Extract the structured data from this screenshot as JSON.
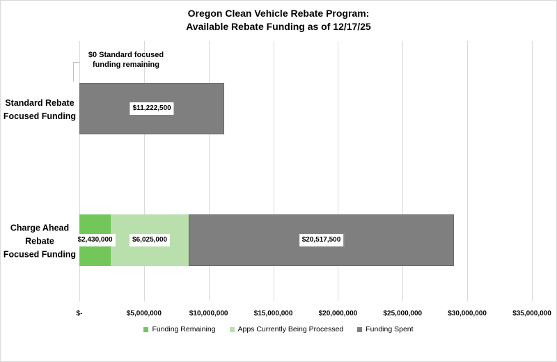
{
  "title": {
    "line1": "Oregon Clean Vehicle Rebate Program:",
    "line2": "Available Rebate Funding as of 12/17/25"
  },
  "chart_data": {
    "type": "bar",
    "orientation": "horizontal",
    "stacked": true,
    "title": "Oregon Clean Vehicle Rebate Program: Available Rebate Funding as of 12/17/25",
    "categories": [
      "Standard Rebate Focused Funding",
      "Charge Ahead Rebate Focused Funding"
    ],
    "category_display_lines": [
      [
        "Standard Rebate",
        "Focused Funding"
      ],
      [
        "Charge Ahead",
        "Rebate",
        "Focused Funding"
      ]
    ],
    "series": [
      {
        "name": "Funding Remaining",
        "color": "#72C65A",
        "values": [
          0,
          2430000
        ],
        "data_labels": [
          "",
          "$2,430,000"
        ],
        "label_border": false
      },
      {
        "name": "Apps Currently Being Processed",
        "color": "#B9DFAC",
        "values": [
          0,
          6025000
        ],
        "data_labels": [
          "",
          "$6,025,000"
        ],
        "label_border": false
      },
      {
        "name": "Funding Spent",
        "color": "#7F7F7F",
        "values": [
          11222500,
          20517500
        ],
        "data_labels": [
          "$11,222,500",
          "$20,517,500"
        ],
        "label_border": true
      }
    ],
    "x_axis": {
      "min": 0,
      "max": 35000000,
      "tick_interval": 5000000,
      "tick_labels": [
        "$-",
        "$5,000,000",
        "$10,000,000",
        "$15,000,000",
        "$20,000,000",
        "$25,000,000",
        "$30,000,000",
        "$35,000,000"
      ]
    },
    "grid": "vertical-major",
    "legend_position": "bottom",
    "annotation": {
      "lines": [
        "$0 Standard focused",
        "funding remaining"
      ],
      "text": "$0 Standard focused funding remaining",
      "points_to_category": "Standard Rebate Focused Funding"
    }
  },
  "colors": {
    "funding_remaining": "#72C65A",
    "apps_processing": "#B9DFAC",
    "funding_spent": "#7F7F7F",
    "gridline": "#D9D9D9",
    "leader_line": "#BFBFBF",
    "label_box_border": "#808080",
    "background": "#FFFFFF",
    "text": "#000000"
  }
}
